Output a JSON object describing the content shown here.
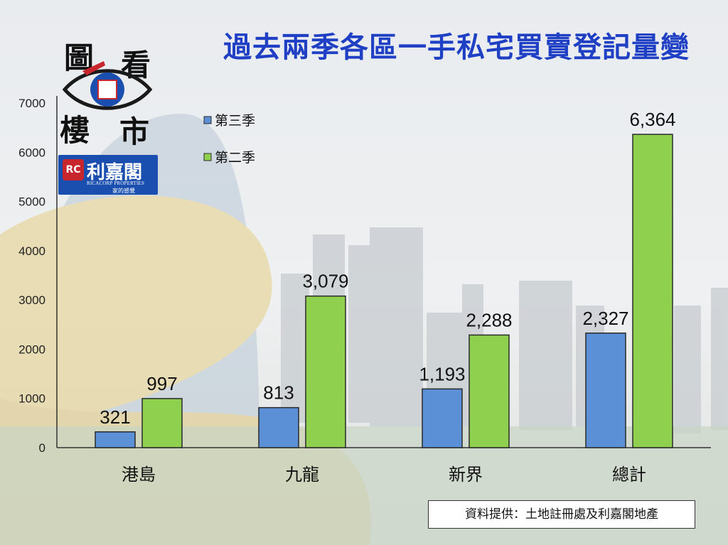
{
  "title": "過去兩季各區一手私宅買賣登記量變",
  "logo": {
    "chars": [
      "圖",
      "看",
      "樓",
      "市"
    ],
    "seal": "RC",
    "brand_name": "利嘉閣",
    "brand_en": "RICACORP PROPERTIES",
    "brand_tagline": "家的感覺"
  },
  "source_note": "資料提供：土地註冊處及利嘉閣地產",
  "colors": {
    "title": "#1f3fc4",
    "series_q3": "#5b8fd6",
    "series_q2": "#8fd14f",
    "bar_stroke": "#2a2a2a"
  },
  "chart_data": {
    "type": "bar",
    "title": "過去兩季各區一手私宅買賣登記量變",
    "categories": [
      "港島",
      "九龍",
      "新界",
      "總計"
    ],
    "series": [
      {
        "name": "第三季",
        "values": [
          321,
          813,
          1193,
          2327
        ],
        "labels": [
          "321",
          "813",
          "1,193",
          "2,327"
        ]
      },
      {
        "name": "第二季",
        "values": [
          997,
          3079,
          2288,
          6364
        ],
        "labels": [
          "997",
          "3,079",
          "2,288",
          "6,364"
        ]
      }
    ],
    "ylim": [
      0,
      7000
    ],
    "yticks": [
      0,
      1000,
      2000,
      3000,
      4000,
      5000,
      6000,
      7000
    ],
    "xlabel": "",
    "ylabel": "",
    "legend": "top-left",
    "grid": false
  }
}
